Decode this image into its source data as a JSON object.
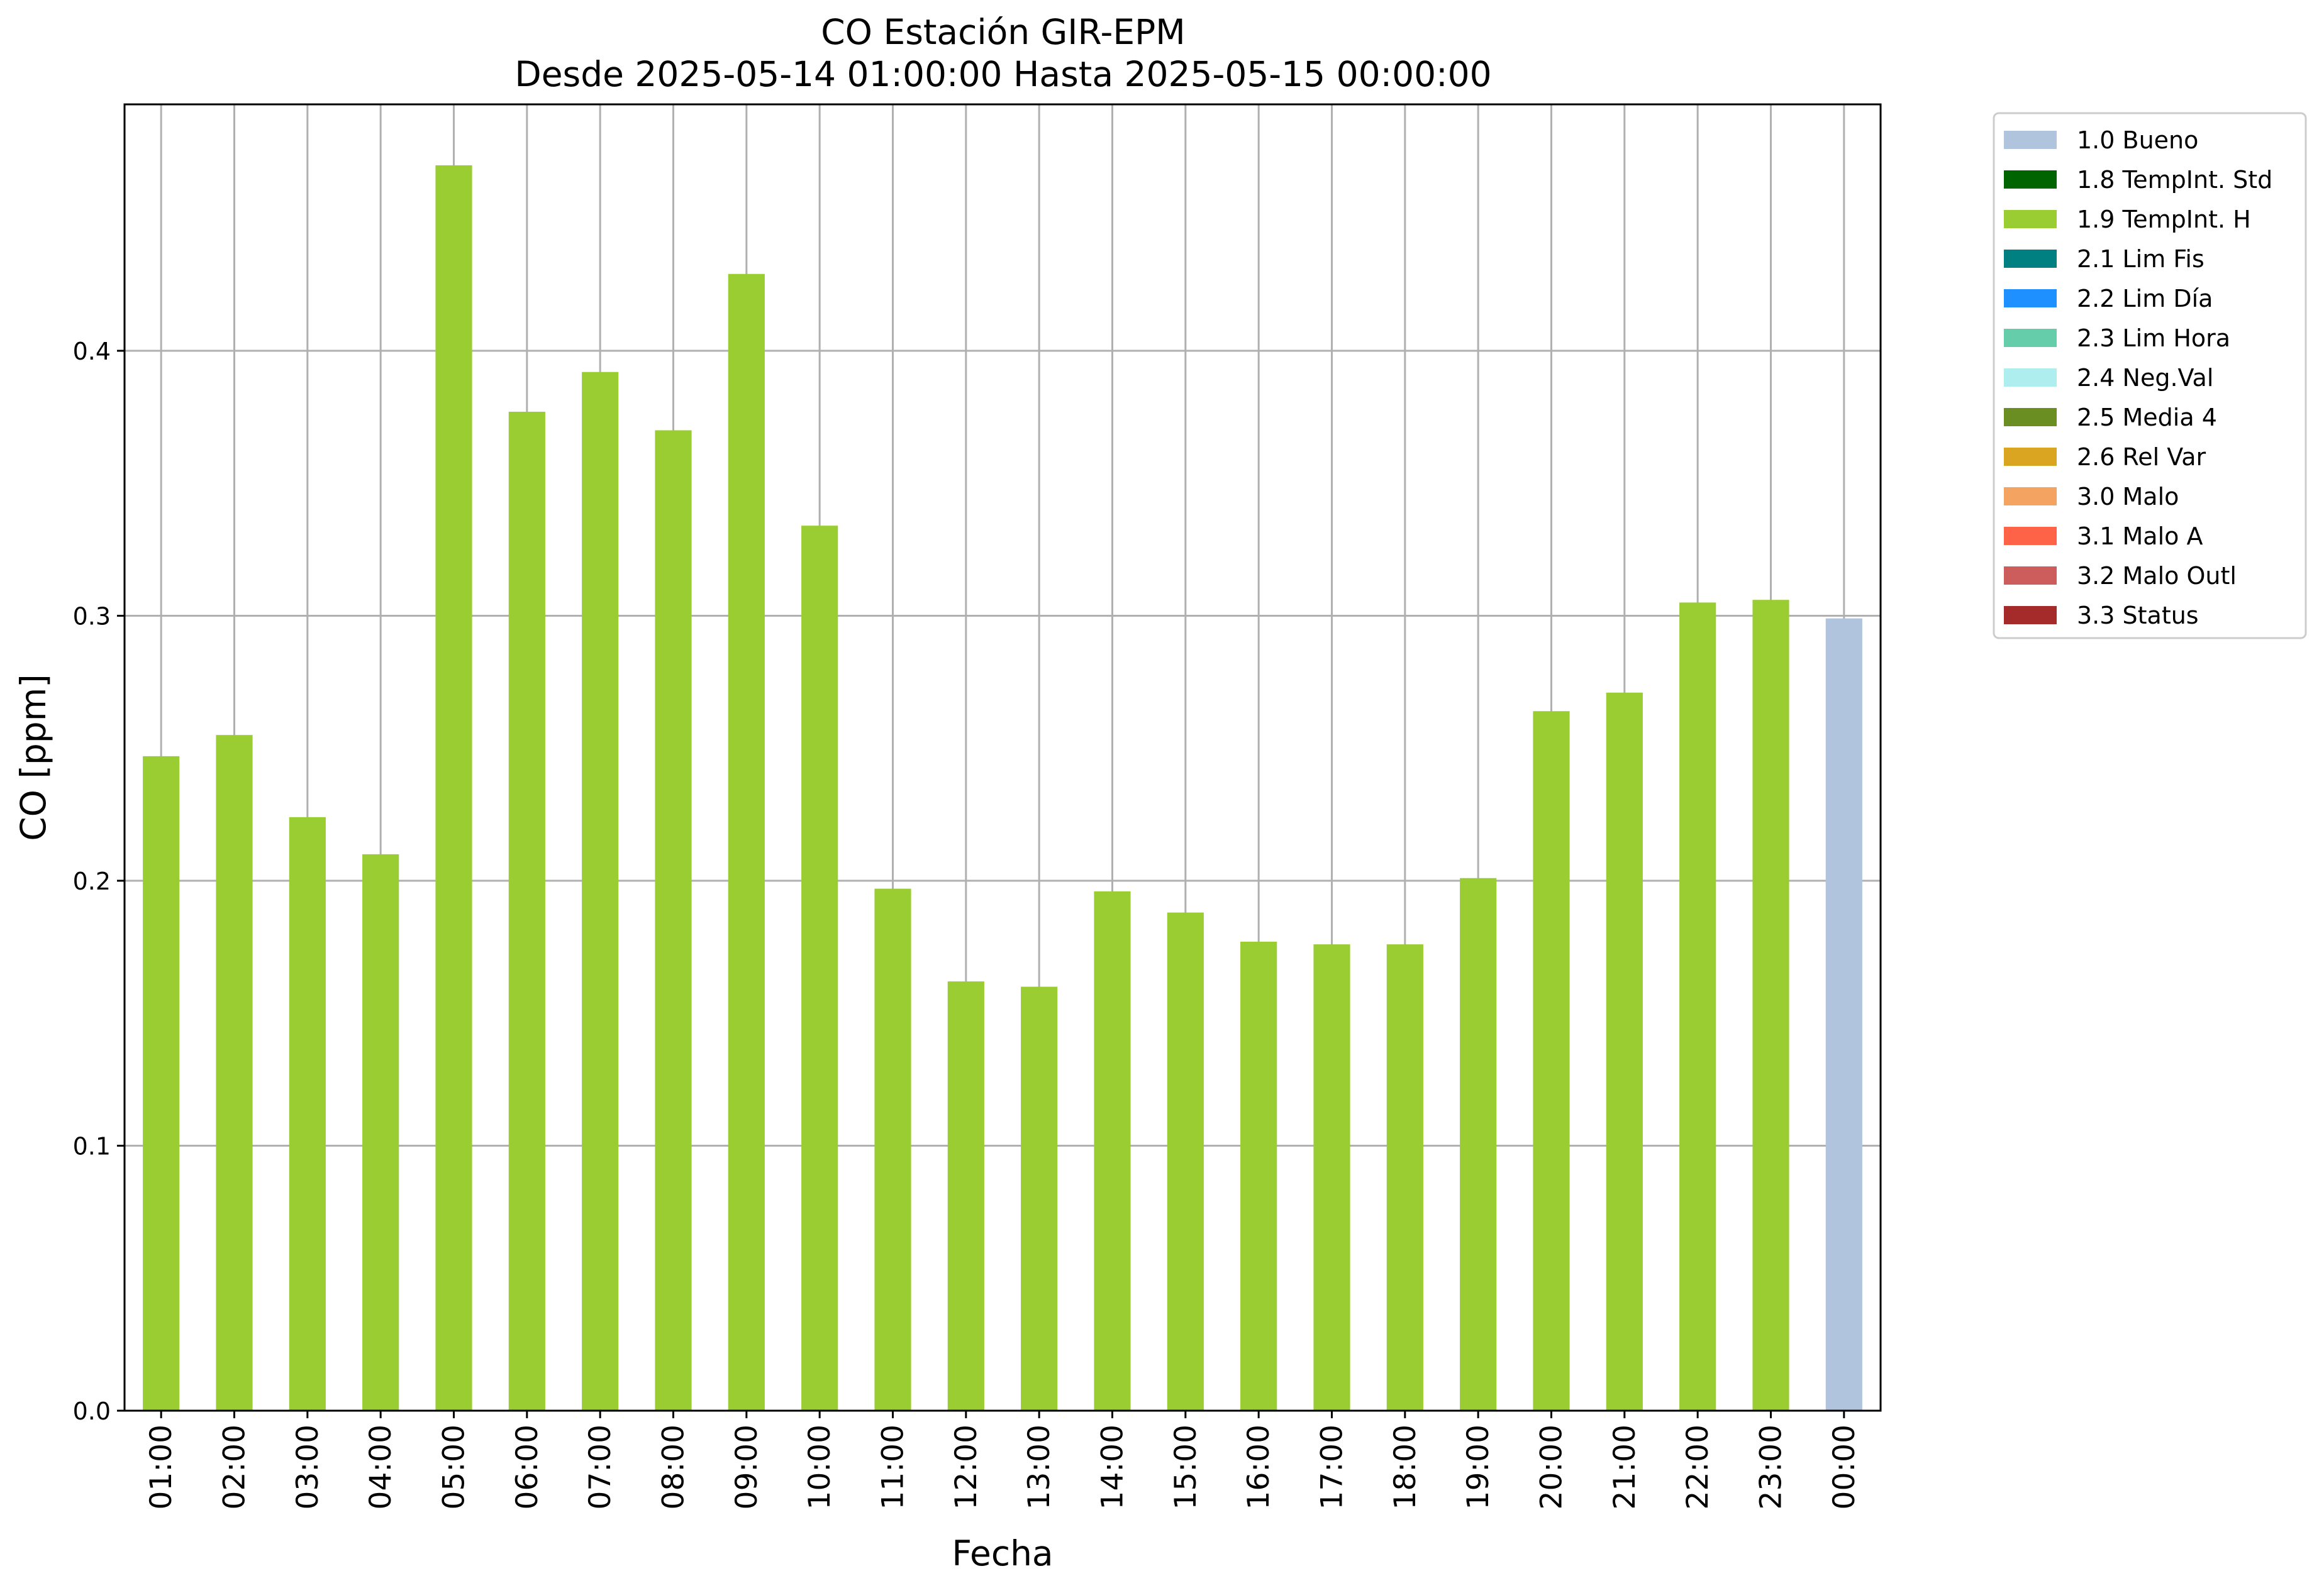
{
  "chart_data": {
    "type": "bar",
    "title": "CO Estación GIR-EPM",
    "subtitle": "Desde 2025-05-14 01:00:00 Hasta 2025-05-15 00:00:00",
    "xlabel": "Fecha",
    "ylabel": "CO [ppm]",
    "ylim": [
      0,
      0.493
    ],
    "yticks": [
      "0.0",
      "0.1",
      "0.2",
      "0.3",
      "0.4"
    ],
    "grid": true,
    "legend_position": "outside-top-right",
    "categories": [
      "01:00",
      "02:00",
      "03:00",
      "04:00",
      "05:00",
      "06:00",
      "07:00",
      "08:00",
      "09:00",
      "10:00",
      "11:00",
      "12:00",
      "13:00",
      "14:00",
      "15:00",
      "16:00",
      "17:00",
      "18:00",
      "19:00",
      "20:00",
      "21:00",
      "22:00",
      "23:00",
      "00:00"
    ],
    "values": [
      0.247,
      0.255,
      0.224,
      0.21,
      0.47,
      0.377,
      0.392,
      0.37,
      0.429,
      0.334,
      0.197,
      0.162,
      0.16,
      0.196,
      0.188,
      0.177,
      0.176,
      0.176,
      0.201,
      0.264,
      0.271,
      0.305,
      0.306,
      0.299
    ],
    "flags": [
      "1.9 TempInt. H",
      "1.9 TempInt. H",
      "1.9 TempInt. H",
      "1.9 TempInt. H",
      "1.9 TempInt. H",
      "1.9 TempInt. H",
      "1.9 TempInt. H",
      "1.9 TempInt. H",
      "1.9 TempInt. H",
      "1.9 TempInt. H",
      "1.9 TempInt. H",
      "1.9 TempInt. H",
      "1.9 TempInt. H",
      "1.9 TempInt. H",
      "1.9 TempInt. H",
      "1.9 TempInt. H",
      "1.9 TempInt. H",
      "1.9 TempInt. H",
      "1.9 TempInt. H",
      "1.9 TempInt. H",
      "1.9 TempInt. H",
      "1.9 TempInt. H",
      "1.9 TempInt. H",
      "1.0 Bueno"
    ],
    "legend": [
      {
        "label": "1.0 Bueno",
        "color": "#b0c4de"
      },
      {
        "label": "1.8 TempInt. Std",
        "color": "#006400"
      },
      {
        "label": "1.9 TempInt. H",
        "color": "#9acd32"
      },
      {
        "label": "2.1 Lim Fis",
        "color": "#008080"
      },
      {
        "label": "2.2 Lim Día",
        "color": "#1e90ff"
      },
      {
        "label": "2.3 Lim Hora",
        "color": "#66cdaa"
      },
      {
        "label": "2.4 Neg.Val",
        "color": "#afeeee"
      },
      {
        "label": "2.5 Media 4",
        "color": "#6b8e23"
      },
      {
        "label": "2.6 Rel Var",
        "color": "#daa520"
      },
      {
        "label": "3.0 Malo",
        "color": "#f4a460"
      },
      {
        "label": "3.1 Malo A",
        "color": "#ff6347"
      },
      {
        "label": "3.2 Malo Outl",
        "color": "#cd5c5c"
      },
      {
        "label": "3.3 Status",
        "color": "#a52a2a"
      }
    ]
  }
}
